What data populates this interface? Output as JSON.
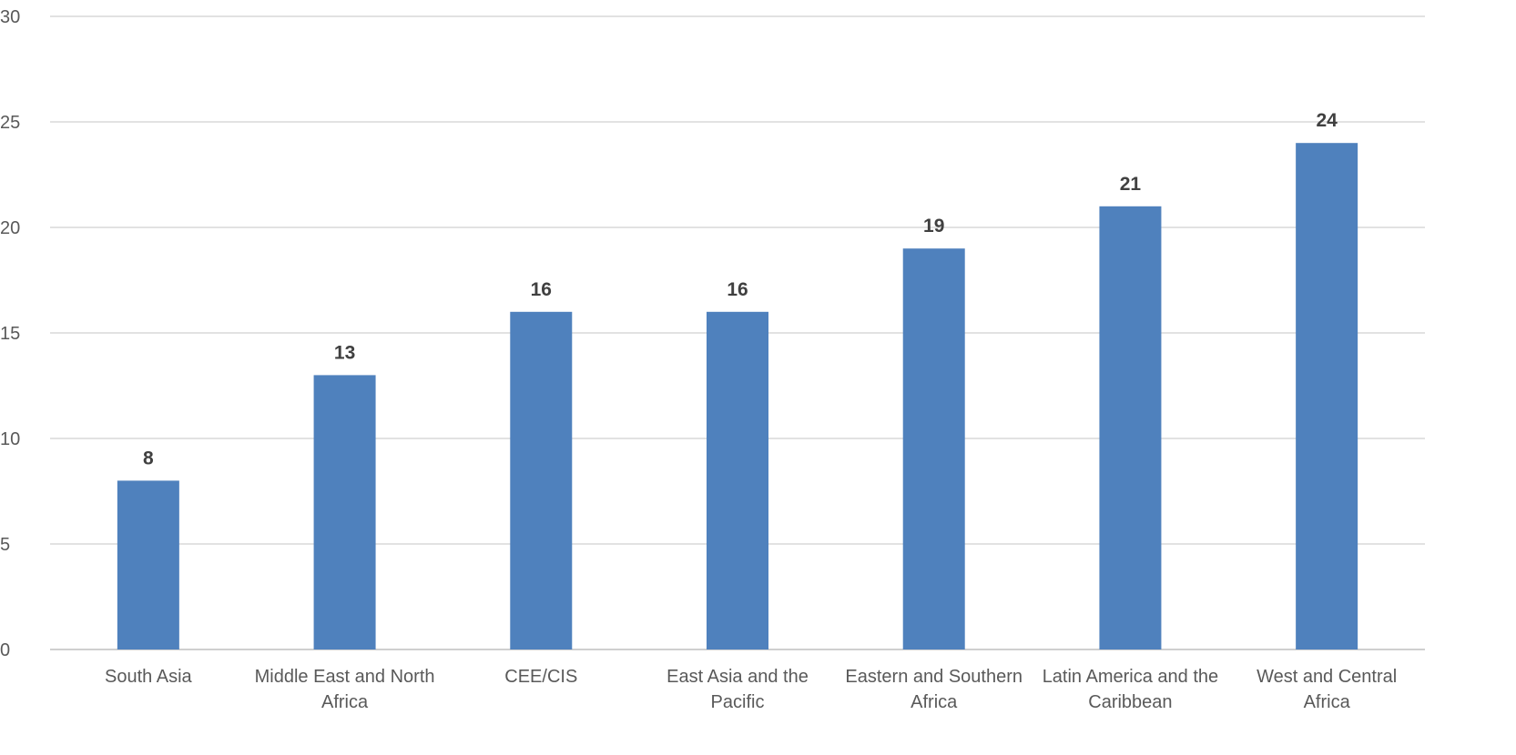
{
  "chart_data": {
    "type": "bar",
    "categories": [
      [
        "South Asia"
      ],
      [
        "Middle East and North",
        "Africa"
      ],
      [
        "CEE/CIS"
      ],
      [
        "East Asia and the",
        "Pacific"
      ],
      [
        "Eastern and Southern",
        "Africa"
      ],
      [
        "Latin America and the",
        "Caribbean"
      ],
      [
        "West and Central",
        "Africa"
      ]
    ],
    "values": [
      8,
      13,
      16,
      16,
      19,
      21,
      24
    ],
    "data_labels": [
      "8",
      "13",
      "16",
      "16",
      "19",
      "21",
      "24"
    ],
    "yticks": [
      0,
      5,
      10,
      15,
      20,
      25,
      30
    ],
    "ylim": [
      0,
      30
    ],
    "grid": true,
    "legend": "none",
    "title": "",
    "xlabel": "",
    "ylabel": "",
    "colors": {
      "bar": "#4f81bd",
      "grid": "#d9d9d9",
      "tick_text": "#595959",
      "data_label_text": "#404040"
    }
  }
}
